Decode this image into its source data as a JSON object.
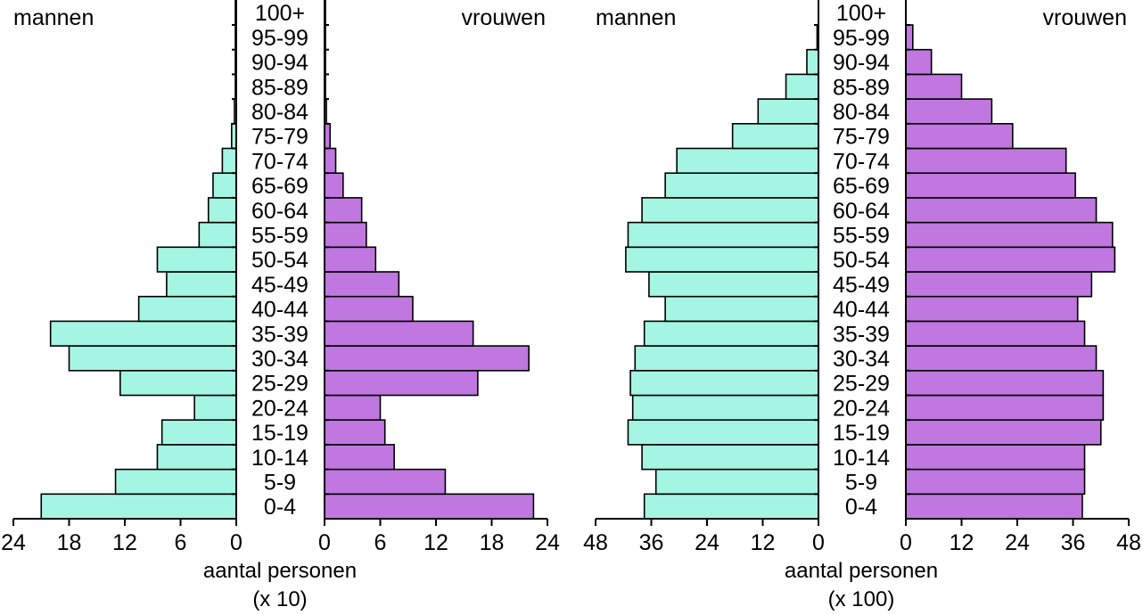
{
  "chart_data": [
    {
      "type": "bar",
      "orientation": "horizontal",
      "layout": "population-pyramid",
      "categories": [
        "0-4",
        "5-9",
        "10-14",
        "15-19",
        "20-24",
        "25-29",
        "30-34",
        "35-39",
        "40-44",
        "45-49",
        "50-54",
        "55-59",
        "60-64",
        "65-69",
        "70-74",
        "75-79",
        "80-84",
        "85-89",
        "90-94",
        "95-99",
        "100+"
      ],
      "series": [
        {
          "name": "mannen",
          "side": "left",
          "color": "#a5f5e3",
          "values": [
            21,
            13,
            8.5,
            8,
            4.5,
            12.5,
            18,
            20,
            10.5,
            7.5,
            8.5,
            4,
            3,
            2.5,
            1.5,
            0.5,
            0.2,
            0.1,
            0.1,
            0.1,
            0.1
          ]
        },
        {
          "name": "vrouwen",
          "side": "right",
          "color": "#c077e0",
          "values": [
            22.5,
            13,
            7.5,
            6.5,
            6,
            16.5,
            22,
            16,
            9.5,
            8,
            5.5,
            4.5,
            4,
            2,
            1.2,
            0.6,
            0.2,
            0.1,
            0.1,
            0.1,
            0.1
          ]
        }
      ],
      "left_title": "mannen",
      "right_title": "vrouwen",
      "xlim": [
        0,
        24
      ],
      "left_ticks": [
        "24",
        "18",
        "12",
        "6",
        "0"
      ],
      "right_ticks": [
        "0",
        "6",
        "12",
        "18",
        "24"
      ],
      "xlabel": "aantal personen",
      "xunit": "(x 10)"
    },
    {
      "type": "bar",
      "orientation": "horizontal",
      "layout": "population-pyramid",
      "categories": [
        "0-4",
        "5-9",
        "10-14",
        "15-19",
        "20-24",
        "25-29",
        "30-34",
        "35-39",
        "40-44",
        "45-49",
        "50-54",
        "55-59",
        "60-64",
        "65-69",
        "70-74",
        "75-79",
        "80-84",
        "85-89",
        "90-94",
        "95-99",
        "100+"
      ],
      "series": [
        {
          "name": "mannen",
          "side": "left",
          "color": "#a5f5e3",
          "values": [
            37.5,
            35,
            38,
            41,
            40,
            40.5,
            39.5,
            37.5,
            33,
            36.5,
            41.5,
            41,
            38,
            33,
            30.5,
            18.5,
            13,
            7,
            2.5,
            0.3,
            0
          ]
        },
        {
          "name": "vrouwen",
          "side": "right",
          "color": "#c077e0",
          "values": [
            38,
            38.5,
            38.5,
            42,
            42.5,
            42.5,
            41,
            38.5,
            37,
            40,
            45,
            44.5,
            41,
            36.5,
            34.5,
            23,
            18.5,
            12,
            5.5,
            1.5,
            0
          ]
        }
      ],
      "left_title": "mannen",
      "right_title": "vrouwen",
      "xlim": [
        0,
        48
      ],
      "left_ticks": [
        "48",
        "36",
        "24",
        "12",
        "0"
      ],
      "right_ticks": [
        "0",
        "12",
        "24",
        "36",
        "48"
      ],
      "xlabel": "aantal personen",
      "xunit": "(x 100)"
    }
  ]
}
